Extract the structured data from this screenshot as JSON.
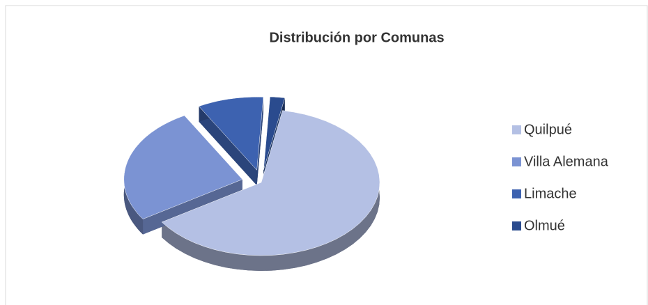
{
  "chart_data": {
    "type": "pie",
    "title": "Distribución por Comunas",
    "categories": [
      "Quilpué",
      "Villa Alemana",
      "Limache",
      "Olmué"
    ],
    "values": [
      63,
      26,
      9,
      2
    ],
    "colors": [
      "#b4c0e4",
      "#7b93d3",
      "#3d62b0",
      "#2a4b8e"
    ],
    "legend": "right"
  }
}
